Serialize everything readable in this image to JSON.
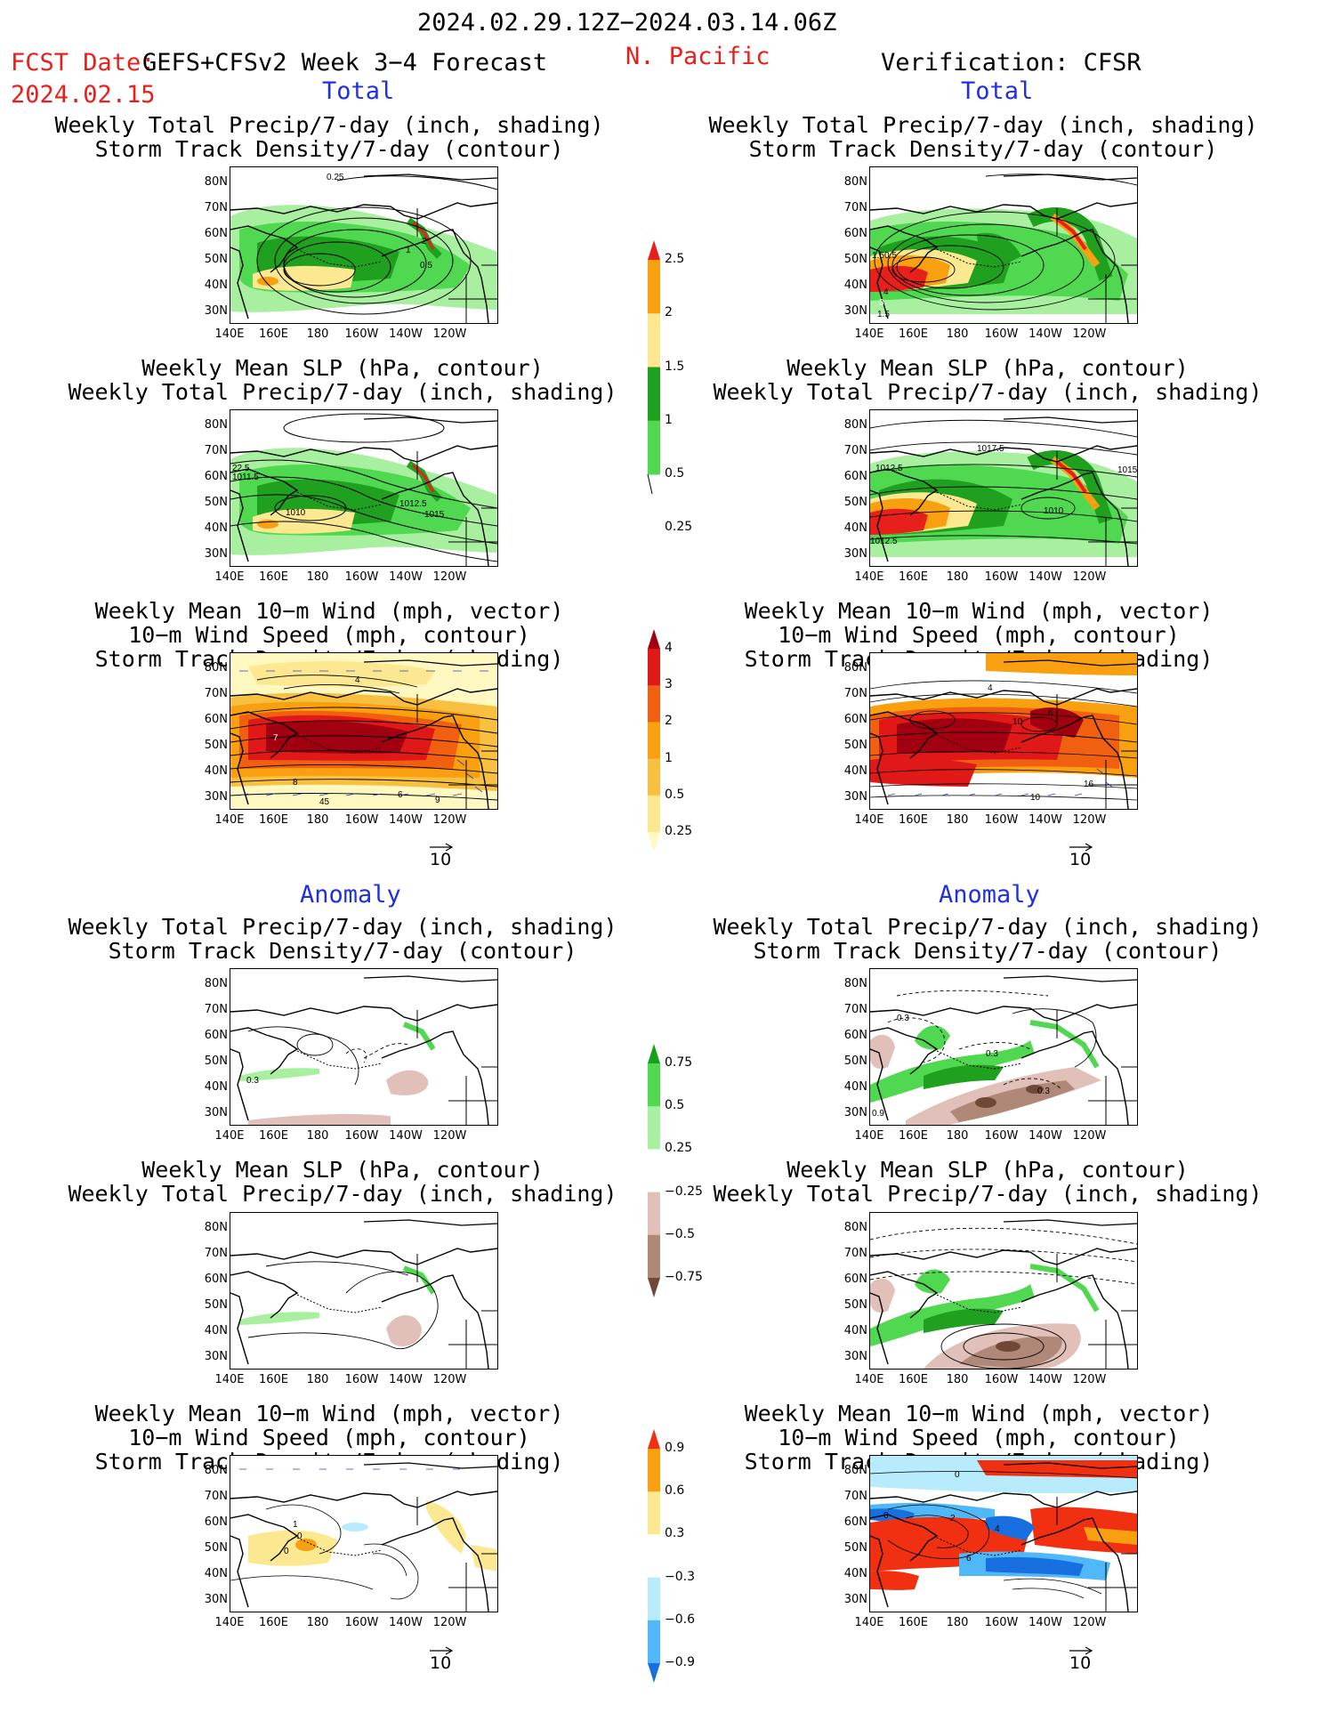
{
  "header": {
    "date_range": "2024.02.29.12Z−2024.03.14.06Z",
    "fcst_label": "FCST Date:",
    "model_label": "GEFS+CFSv2 Week 3−4 Forecast",
    "region": "N. Pacific",
    "verification": "Verification: CFSR",
    "fcst_date": "2024.02.15"
  },
  "sections": {
    "total": "Total",
    "anomaly": "Anomaly"
  },
  "titles": {
    "precip_storm": "Weekly Total Precip/7-day (inch, shading)\nStorm Track Density/7-day (contour)",
    "slp_precip": "Weekly Mean SLP (hPa, contour)\nWeekly Total Precip/7-day (inch, shading)",
    "wind_storm": "Weekly Mean 10−m Wind (mph, vector)\n10−m Wind Speed (mph, contour)\nStorm Track Density/7-day (shading)"
  },
  "axes": {
    "lat_labels": [
      "80N",
      "70N",
      "60N",
      "50N",
      "40N",
      "30N"
    ],
    "lon_labels": [
      "140E",
      "160E",
      "180",
      "160W",
      "140W",
      "120W"
    ]
  },
  "vector_ref": "10",
  "colorbars": {
    "precip_total": {
      "labels": [
        "2.5",
        "2",
        "1.5",
        "1",
        "0.5",
        "0.25"
      ],
      "colors": [
        "#e8201c",
        "#f8a010",
        "#fce890",
        "#1fa01f",
        "#50d850",
        "#a8f0a0"
      ]
    },
    "storm_total": {
      "labels": [
        "4",
        "3",
        "2",
        "1",
        "0.5",
        "0.25"
      ],
      "colors": [
        "#a00010",
        "#e01818",
        "#f06010",
        "#f8a010",
        "#f8c040",
        "#fce890",
        "#fff8c0"
      ]
    },
    "precip_anom": {
      "labels": [
        "0.75",
        "0.5",
        "0.25",
        "−0.25",
        "−0.5",
        "−0.75"
      ],
      "colors": [
        "#18a018",
        "#50d850",
        "#a8f0a0",
        "#ffffff",
        "#e0c0b8",
        "#b08878",
        "#704838"
      ]
    },
    "storm_anom": {
      "labels": [
        "0.9",
        "0.6",
        "0.3",
        "−0.3",
        "−0.6",
        "−0.9"
      ],
      "colors": [
        "#f03010",
        "#f8a010",
        "#fce890",
        "#ffffff",
        "#b8ecfc",
        "#50b8f8",
        "#1870e0"
      ]
    }
  },
  "contour_labels": {
    "p1": [
      "0.25",
      "2",
      "1",
      "0.5"
    ],
    "q1": [
      "1.5",
      "0.5",
      "4",
      "3",
      "1.5"
    ],
    "p2": [
      "22.5",
      "1011.5",
      "1010",
      "1012.5",
      "1015"
    ],
    "q2": [
      "1017.5",
      "1012.5",
      "1015",
      "1010",
      "1012.5"
    ],
    "p3": [
      "4",
      "7",
      "8",
      "45",
      "6",
      "9"
    ],
    "q3": [
      "4",
      "10",
      "6",
      "16",
      "10"
    ],
    "p4": [
      "0.3"
    ],
    "q4": [
      "0.3",
      "0.3",
      "0.3",
      "0.9"
    ],
    "p6": [
      "0",
      "1",
      "0"
    ],
    "q6": [
      "0",
      "2",
      "4",
      "6",
      "0"
    ]
  }
}
